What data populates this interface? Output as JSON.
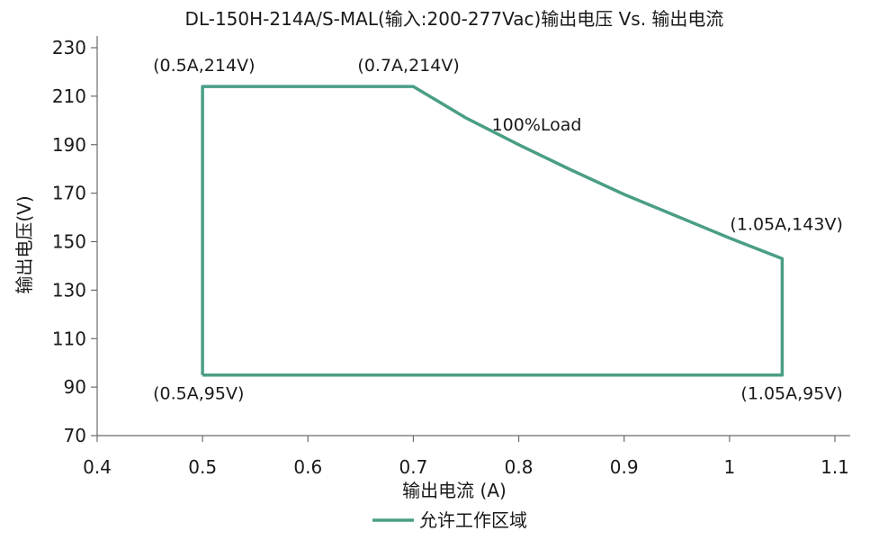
{
  "chart_data": {
    "type": "line",
    "title": "DL-150H-214A/S-MAL(输入:200-277Vac)输出电压 Vs. 输出电流",
    "xlabel": "输出电流 (A)",
    "ylabel": "输出电压(V)",
    "xlim": [
      0.4,
      1.1
    ],
    "ylim": [
      70,
      230
    ],
    "xticks": [
      0.4,
      0.5,
      0.6,
      0.7,
      0.8,
      0.9,
      1,
      1.1
    ],
    "yticks": [
      70,
      90,
      110,
      130,
      150,
      170,
      190,
      210,
      230
    ],
    "grid": false,
    "legend_position": "bottom",
    "color": "#4a9e86",
    "series": [
      {
        "name": "允许工作区域",
        "x": [
          0.5,
          0.5,
          0.7,
          0.75,
          0.8,
          0.85,
          0.9,
          0.95,
          1.0,
          1.05,
          1.05,
          0.5
        ],
        "y": [
          95,
          214,
          214,
          201,
          190,
          179.5,
          169.5,
          160.5,
          151.5,
          143,
          95,
          95
        ]
      }
    ],
    "annotations": [
      {
        "text": "(0.5A,214V)",
        "x": 0.5,
        "y": 214
      },
      {
        "text": "(0.7A,214V)",
        "x": 0.7,
        "y": 214
      },
      {
        "text": "100%Load",
        "x": 0.8,
        "y": 190
      },
      {
        "text": "(1.05A,143V)",
        "x": 1.05,
        "y": 143
      },
      {
        "text": "(0.5A,95V)",
        "x": 0.5,
        "y": 95
      },
      {
        "text": "(1.05A,95V)",
        "x": 1.05,
        "y": 95
      }
    ]
  }
}
